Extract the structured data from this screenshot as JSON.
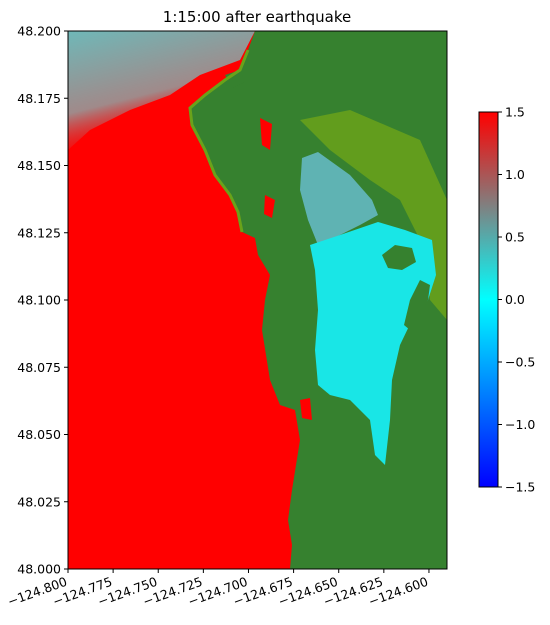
{
  "chart_data": {
    "type": "heatmap",
    "title": "1:15:00 after earthquake",
    "xlabel": "",
    "ylabel": "",
    "xlim": [
      -124.8,
      -124.59
    ],
    "ylim": [
      48.0,
      48.2
    ],
    "x_ticks": [
      -124.8,
      -124.775,
      -124.75,
      -124.725,
      -124.7,
      -124.675,
      -124.65,
      -124.625,
      -124.6
    ],
    "x_tick_labels": [
      "−124.800",
      "−124.775",
      "−124.750",
      "−124.725",
      "−124.700",
      "−124.675",
      "−124.650",
      "−124.625",
      "−124.600"
    ],
    "y_ticks": [
      48.0,
      48.025,
      48.05,
      48.075,
      48.1,
      48.125,
      48.15,
      48.175,
      48.2
    ],
    "y_tick_labels": [
      "48.000",
      "48.025",
      "48.050",
      "48.075",
      "48.100",
      "48.125",
      "48.150",
      "48.175",
      "48.200"
    ],
    "colorbar": {
      "range": [
        -1.5,
        1.5
      ],
      "ticks": [
        -1.5,
        -1.0,
        -0.5,
        0.0,
        0.5,
        1.0,
        1.5
      ],
      "tick_labels": [
        "−1.5",
        "−1.0",
        "−0.5",
        "0.0",
        "0.5",
        "1.0",
        "1.5"
      ],
      "colormap": [
        "#0000ff",
        "#00ffff",
        "#808080",
        "#ff0000"
      ]
    },
    "grid": false,
    "colors": {
      "land": "#36812f",
      "wet_land": "#6aa21a",
      "ocean_high": "#ff0000",
      "inundated_bay": "#19e6e6",
      "bay_upper": "#5fb3b3",
      "offshore_mixed": "#6fb8b8"
    }
  }
}
